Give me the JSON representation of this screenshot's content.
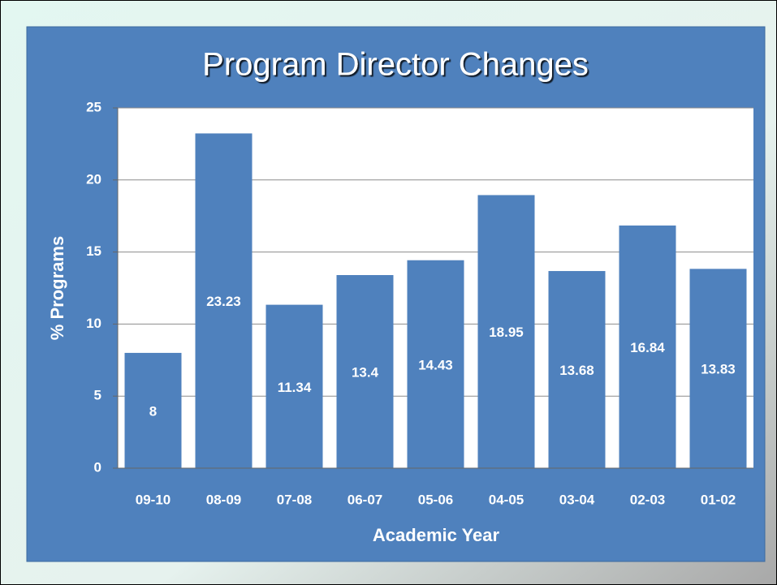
{
  "chart_data": {
    "type": "bar",
    "title": "Program Director Changes",
    "x_label": "Academic Year",
    "y_label": "% Programs",
    "categories": [
      "09-10",
      "08-09",
      "07-08",
      "06-07",
      "05-06",
      "04-05",
      "03-04",
      "02-03",
      "01-02"
    ],
    "values": [
      8,
      23.23,
      11.34,
      13.4,
      14.43,
      18.95,
      13.68,
      16.84,
      13.83
    ],
    "color": "#4f81bd",
    "ylim": [
      0,
      25
    ],
    "yticks": [
      0,
      5,
      10,
      15,
      20,
      25
    ],
    "grid": true
  }
}
